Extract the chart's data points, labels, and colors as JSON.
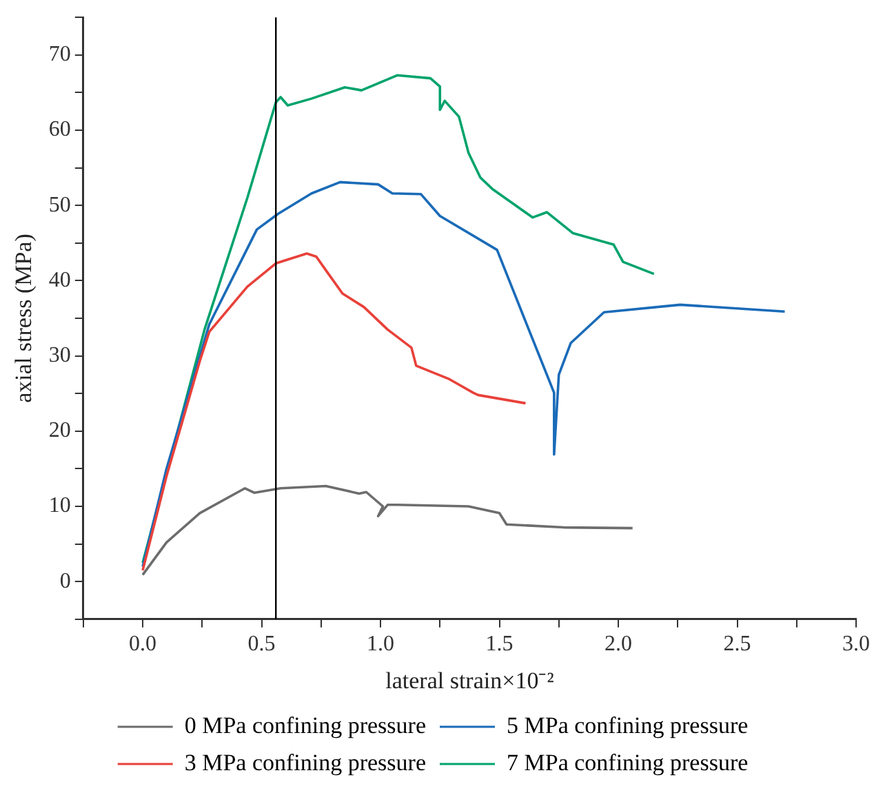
{
  "chart_data": {
    "type": "line",
    "xlabel": "lateral strain×10⁻²",
    "ylabel": "axial stress (MPa)",
    "xlim": [
      -0.25,
      3.0
    ],
    "ylim": [
      -5,
      75
    ],
    "xticks": [
      {
        "value": -0.25,
        "label": null
      },
      {
        "value": 0,
        "label": "0.0"
      },
      {
        "value": 0.25,
        "label": null
      },
      0.5,
      {
        "value": 0.75,
        "label": null
      },
      {
        "value": 1,
        "label": "1.0"
      },
      {
        "value": 1.25,
        "label": null
      },
      1.5,
      {
        "value": 1.75,
        "label": null
      },
      {
        "value": 2,
        "label": "2.0"
      },
      {
        "value": 2.25,
        "label": null
      },
      2.5,
      {
        "value": 2.75,
        "label": null
      },
      {
        "value": 3,
        "label": "3.0"
      }
    ],
    "yticks": [
      {
        "value": -5,
        "label": null
      },
      0,
      {
        "value": 5,
        "label": null
      },
      10,
      {
        "value": 15,
        "label": null
      },
      20,
      {
        "value": 25,
        "label": null
      },
      30,
      {
        "value": 35,
        "label": null
      },
      40,
      {
        "value": 45,
        "label": null
      },
      50,
      {
        "value": 55,
        "label": null
      },
      60,
      {
        "value": 65,
        "label": null
      },
      70,
      {
        "value": 75,
        "label": null
      }
    ],
    "grid": false,
    "legend": "bottom",
    "marker": "none",
    "line_style": "solid",
    "ref_lines": [
      {
        "axis": "x",
        "value": 0.56,
        "color": "#000000"
      }
    ],
    "series": [
      {
        "name": "0 MPa confining pressure",
        "color": "#6d6d6d",
        "x": [
          0,
          0.1,
          0.24,
          0.43,
          0.47,
          0.58,
          0.77,
          0.91,
          0.94,
          1.01,
          0.99,
          1.03,
          1.07,
          1.37,
          1.5,
          1.53,
          1.77,
          2.06
        ],
        "values": [
          0.9,
          5.2,
          9.1,
          12.4,
          11.8,
          12.4,
          12.7,
          11.7,
          11.9,
          10,
          8.7,
          10.2,
          10.2,
          10,
          9.1,
          7.6,
          7.2,
          7.1
        ]
      },
      {
        "name": "3 MPa confining pressure",
        "color": "#e8413a",
        "x": [
          0,
          0.1,
          0.24,
          0.28,
          0.44,
          0.56,
          0.69,
          0.73,
          0.77,
          0.84,
          0.93,
          1.03,
          1.13,
          1.15,
          1.29,
          1.39,
          1.41,
          1.61
        ],
        "values": [
          1.5,
          14,
          29.3,
          33.2,
          39.2,
          42.3,
          43.6,
          43.2,
          41.4,
          38.3,
          36.5,
          33.5,
          31.1,
          28.7,
          26.9,
          25.1,
          24.8,
          23.7
        ]
      },
      {
        "name": "5 MPa confining pressure",
        "color": "#1a6bb8",
        "x": [
          0,
          0.1,
          0.28,
          0.48,
          0.57,
          0.71,
          0.83,
          0.99,
          1.05,
          1.17,
          1.25,
          1.49,
          1.63,
          1.73,
          1.73,
          1.75,
          1.8,
          1.94,
          2.26,
          2.7
        ],
        "values": [
          2,
          15,
          34.2,
          46.8,
          48.9,
          51.6,
          53.1,
          52.8,
          51.6,
          51.5,
          48.6,
          44.1,
          33,
          25.1,
          16.9,
          27.5,
          31.7,
          35.8,
          36.8,
          35.9
        ]
      },
      {
        "name": "7 MPa confining pressure",
        "color": "#00a36c",
        "x": [
          0,
          0.26,
          0.44,
          0.56,
          0.58,
          0.61,
          0.71,
          0.85,
          0.92,
          1.07,
          1.21,
          1.25,
          1.25,
          1.27,
          1.33,
          1.37,
          1.42,
          1.47,
          1.55,
          1.64,
          1.7,
          1.81,
          1.98,
          2.02,
          2.15
        ],
        "values": [
          2.5,
          33.5,
          51,
          63.7,
          64.4,
          63.3,
          64.2,
          65.7,
          65.3,
          67.3,
          66.9,
          65.8,
          62.7,
          63.9,
          61.8,
          57,
          53.7,
          52.2,
          50.4,
          48.4,
          49.1,
          46.3,
          44.8,
          42.5,
          40.9
        ]
      }
    ]
  }
}
